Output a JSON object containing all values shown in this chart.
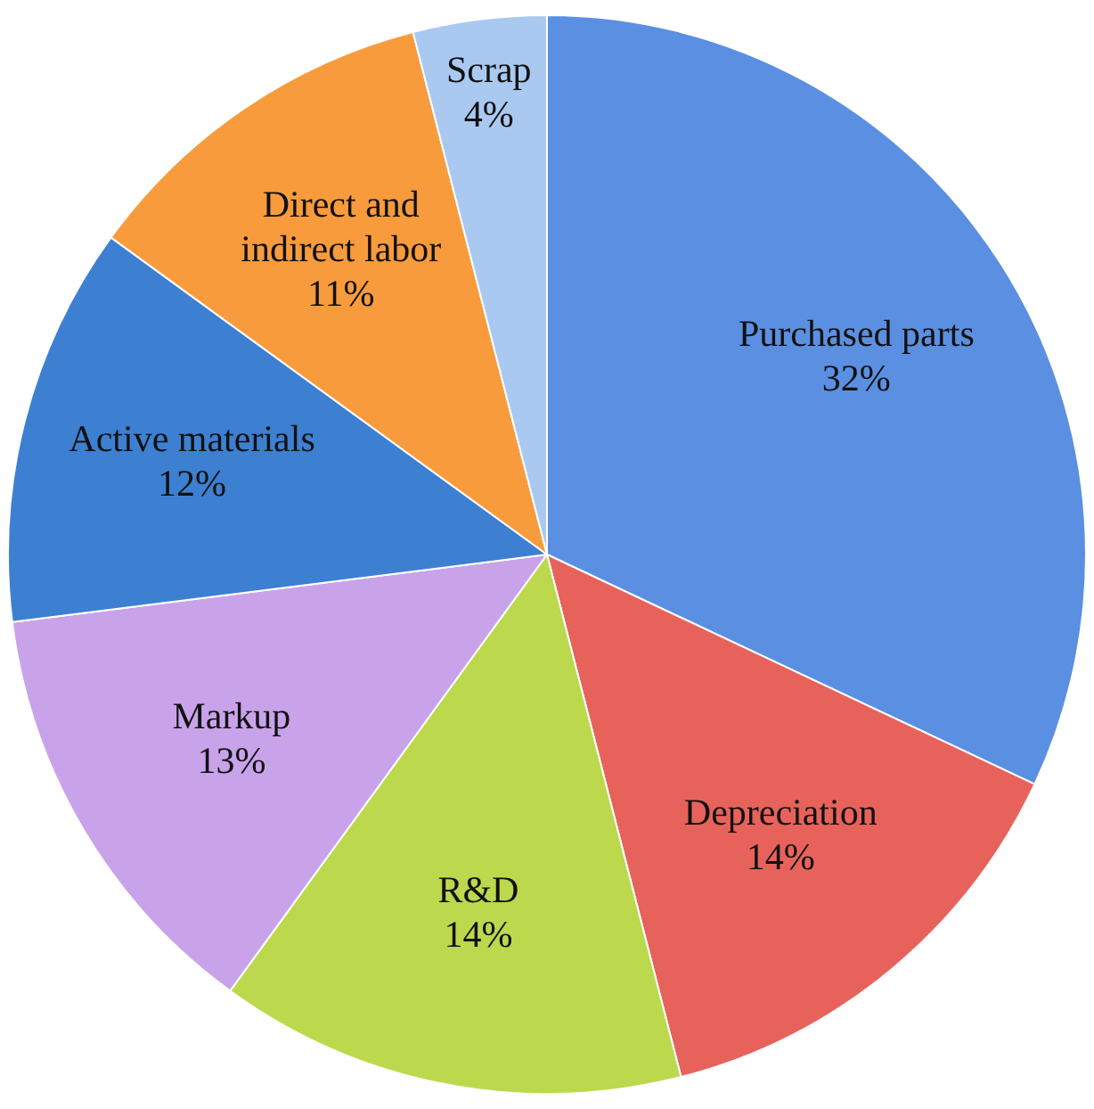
{
  "chart_data": {
    "type": "pie",
    "categories": [
      "Purchased parts",
      "Depreciation",
      "R&D",
      "Markup",
      "Active materials",
      "Direct and indirect labor",
      "Scrap"
    ],
    "values": [
      32,
      14,
      14,
      13,
      12,
      11,
      4
    ],
    "value_labels": [
      "32%",
      "14%",
      "14%",
      "13%",
      "12%",
      "11%",
      "4%"
    ],
    "colors": [
      "#5b8fe2",
      "#e8625c",
      "#bcd84c",
      "#c9a3ea",
      "#3d80d2",
      "#f89b3c",
      "#a9c9f1"
    ],
    "legend": false
  }
}
